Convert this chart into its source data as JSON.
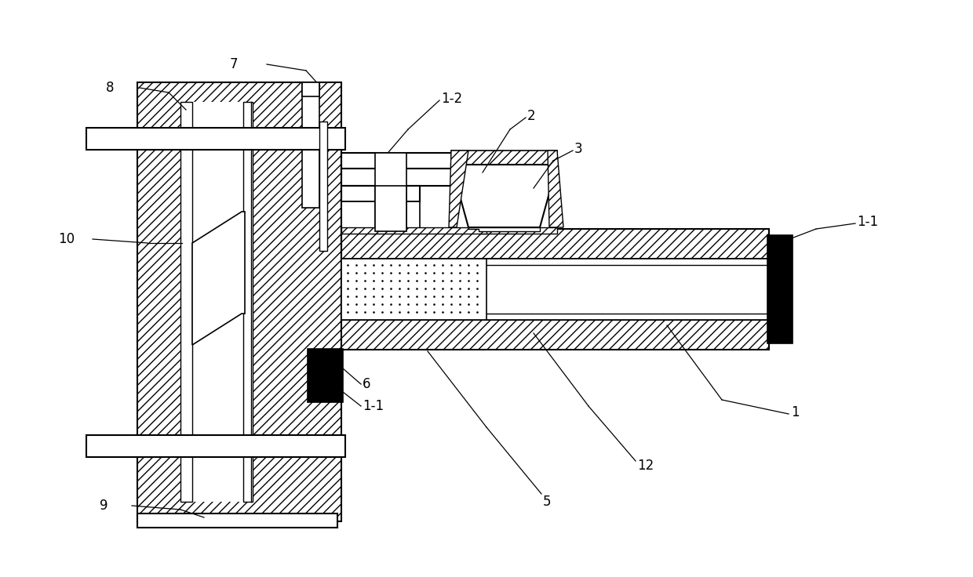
{
  "bg_color": "#ffffff",
  "lc": "#000000",
  "fig_width": 12.4,
  "fig_height": 7.36,
  "dpi": 100
}
